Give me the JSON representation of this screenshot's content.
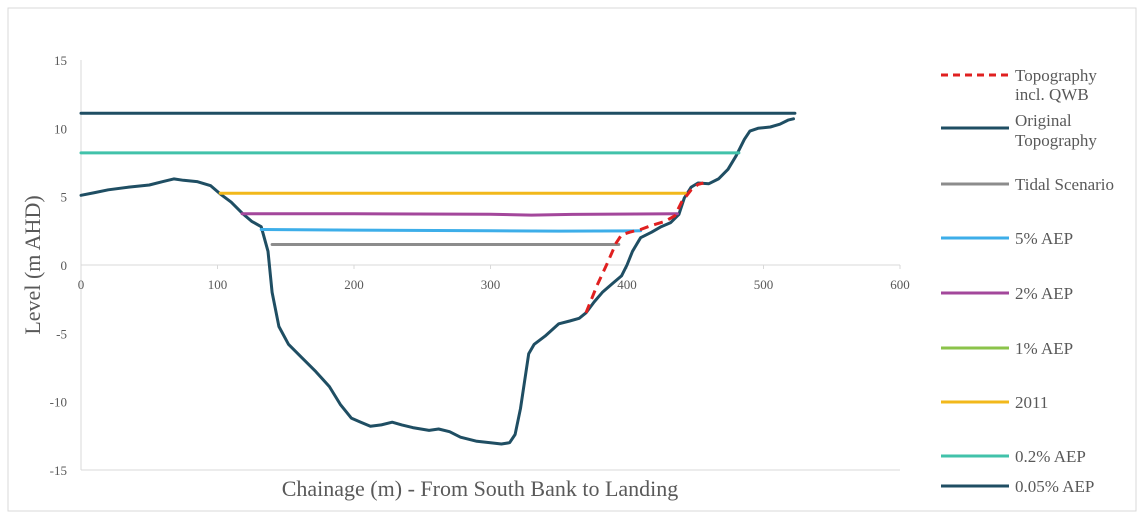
{
  "colors": {
    "background": "#ffffff",
    "frame": "#d9d9d9",
    "axis": "#d9d9d9",
    "tick_text": "#595959",
    "legend_text": "#595959",
    "axis_title": "#595959"
  },
  "chart_data": {
    "type": "line",
    "title": "",
    "xlabel": "Chainage (m)  - From South Bank to Landing",
    "ylabel": "Level (m AHD)",
    "xlim": [
      0,
      600
    ],
    "ylim": [
      -15,
      15
    ],
    "x_ticks": [
      0,
      100,
      200,
      300,
      400,
      500,
      600
    ],
    "y_ticks": [
      -15,
      -10,
      -5,
      0,
      5,
      10,
      15
    ],
    "grid": false,
    "legend_position": "right",
    "series": [
      {
        "name": "Topography incl. QWB",
        "color": "#e02020",
        "dash": "dashed",
        "points": [
          [
            370,
            -3.5
          ],
          [
            378,
            -1.5
          ],
          [
            385,
            0
          ],
          [
            392,
            1.6
          ],
          [
            396,
            2.2
          ],
          [
            402,
            2.4
          ],
          [
            410,
            2.6
          ],
          [
            418,
            2.9
          ],
          [
            428,
            3.2
          ],
          [
            435,
            3.6
          ],
          [
            440,
            4.6
          ],
          [
            447,
            5.5
          ],
          [
            452,
            5.9
          ],
          [
            456,
            6.0
          ]
        ]
      },
      {
        "name": "Original Topography",
        "color": "#1f4e63",
        "dash": "solid",
        "points": [
          [
            0,
            5.1
          ],
          [
            10,
            5.3
          ],
          [
            20,
            5.5
          ],
          [
            35,
            5.7
          ],
          [
            50,
            5.85
          ],
          [
            60,
            6.1
          ],
          [
            68,
            6.3
          ],
          [
            75,
            6.2
          ],
          [
            85,
            6.1
          ],
          [
            95,
            5.8
          ],
          [
            102,
            5.2
          ],
          [
            110,
            4.6
          ],
          [
            118,
            3.8
          ],
          [
            125,
            3.2
          ],
          [
            132,
            2.8
          ],
          [
            137,
            1.0
          ],
          [
            140,
            -2.0
          ],
          [
            145,
            -4.5
          ],
          [
            152,
            -5.8
          ],
          [
            162,
            -6.8
          ],
          [
            172,
            -7.8
          ],
          [
            182,
            -8.9
          ],
          [
            190,
            -10.2
          ],
          [
            198,
            -11.2
          ],
          [
            205,
            -11.5
          ],
          [
            212,
            -11.8
          ],
          [
            220,
            -11.7
          ],
          [
            228,
            -11.5
          ],
          [
            235,
            -11.7
          ],
          [
            243,
            -11.9
          ],
          [
            255,
            -12.1
          ],
          [
            262,
            -12.0
          ],
          [
            270,
            -12.2
          ],
          [
            278,
            -12.6
          ],
          [
            290,
            -12.9
          ],
          [
            300,
            -13.0
          ],
          [
            308,
            -13.1
          ],
          [
            314,
            -13.0
          ],
          [
            318,
            -12.4
          ],
          [
            322,
            -10.5
          ],
          [
            325,
            -8.5
          ],
          [
            328,
            -6.5
          ],
          [
            332,
            -5.8
          ],
          [
            340,
            -5.2
          ],
          [
            350,
            -4.3
          ],
          [
            358,
            -4.1
          ],
          [
            365,
            -3.9
          ],
          [
            370,
            -3.5
          ],
          [
            376,
            -2.7
          ],
          [
            382,
            -2.0
          ],
          [
            390,
            -1.3
          ],
          [
            396,
            -0.8
          ],
          [
            400,
            0.0
          ],
          [
            404,
            1.0
          ],
          [
            410,
            2.0
          ],
          [
            418,
            2.4
          ],
          [
            425,
            2.8
          ],
          [
            432,
            3.1
          ],
          [
            438,
            3.7
          ],
          [
            442,
            4.9
          ],
          [
            447,
            5.7
          ],
          [
            452,
            6.0
          ],
          [
            460,
            5.95
          ],
          [
            467,
            6.3
          ],
          [
            474,
            7.0
          ],
          [
            480,
            8.0
          ],
          [
            486,
            9.2
          ],
          [
            490,
            9.8
          ],
          [
            496,
            10.0
          ],
          [
            505,
            10.1
          ],
          [
            512,
            10.3
          ],
          [
            518,
            10.6
          ],
          [
            522,
            10.7
          ]
        ]
      },
      {
        "name": "Tidal Scenario",
        "color": "#8c8c8c",
        "dash": "solid",
        "points": [
          [
            140,
            1.5
          ],
          [
            394,
            1.5
          ]
        ]
      },
      {
        "name": "5% AEP",
        "color": "#3daee9",
        "dash": "solid",
        "points": [
          [
            132,
            2.6
          ],
          [
            200,
            2.55
          ],
          [
            300,
            2.5
          ],
          [
            350,
            2.48
          ],
          [
            410,
            2.5
          ]
        ]
      },
      {
        "name": "2% AEP",
        "color": "#a3479b",
        "dash": "solid",
        "points": [
          [
            118,
            3.75
          ],
          [
            200,
            3.75
          ],
          [
            300,
            3.72
          ],
          [
            330,
            3.65
          ],
          [
            360,
            3.7
          ],
          [
            437,
            3.75
          ]
        ]
      },
      {
        "name": "1% AEP",
        "color": "#8bc34a",
        "dash": "solid",
        "points": []
      },
      {
        "name": "2011",
        "color": "#f2b81b",
        "dash": "solid",
        "points": [
          [
            102,
            5.25
          ],
          [
            443,
            5.25
          ]
        ]
      },
      {
        "name": "0.2% AEP",
        "color": "#41c2aa",
        "dash": "solid",
        "points": [
          [
            0,
            8.2
          ],
          [
            482,
            8.2
          ]
        ]
      },
      {
        "name": "0.05% AEP",
        "color": "#1f4e63",
        "dash": "solid",
        "points": [
          [
            0,
            11.1
          ],
          [
            523,
            11.1
          ]
        ]
      }
    ]
  }
}
